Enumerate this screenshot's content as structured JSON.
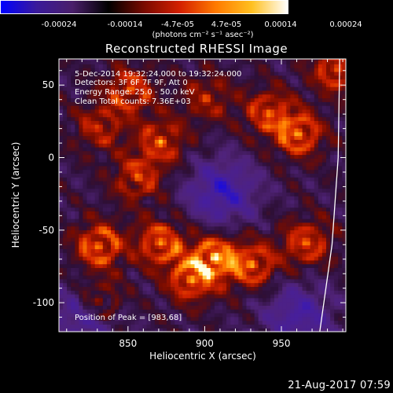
{
  "colorbar": {
    "ticks": [
      "-0.00024",
      "-0.00014",
      "-4.7e-05",
      "4.7e-05",
      "0.00014",
      "0.00024"
    ],
    "unit": "(photons cm⁻² s⁻¹ asec⁻²)",
    "colors": [
      "#0000ff",
      "#3a1a9a",
      "#4a1f6a",
      "#000000",
      "#7a0a00",
      "#d42000",
      "#ff7a00",
      "#ffc020",
      "#ffffff"
    ]
  },
  "chart_data": {
    "type": "heatmap",
    "title": "Reconstructed RHESSI Image",
    "xlabel": "Heliocentric X (arcsec)",
    "ylabel": "Heliocentric Y (arcsec)",
    "xlim": [
      805,
      992
    ],
    "ylim": [
      -120,
      68
    ],
    "xticks": [
      850,
      900,
      950
    ],
    "yticks": [
      -100,
      -50,
      0,
      50
    ],
    "annotations": {
      "time": "5-Dec-2014 19:32:24.000 to 19:32:24.000",
      "detectors": "Detectors: 3F 6F 7F 9F, Att 0",
      "energy": "Energy Range: 25.0 - 50.0 keV",
      "clean": "Clean     Total counts: 7.36E+03",
      "peak": "Position of Peak = [983,68]"
    },
    "limb_curve": [
      [
        975,
        -120
      ],
      [
        983,
        -60
      ],
      [
        987,
        0
      ],
      [
        988,
        68
      ]
    ],
    "bright_regions": [
      {
        "x": 830,
        "y": -62,
        "level": 0.95
      },
      {
        "x": 870,
        "y": -60,
        "level": 0.9
      },
      {
        "x": 905,
        "y": -70,
        "level": 1.0
      },
      {
        "x": 890,
        "y": -85,
        "level": 0.85
      },
      {
        "x": 960,
        "y": 15,
        "level": 0.9
      },
      {
        "x": 940,
        "y": 30,
        "level": 0.75
      },
      {
        "x": 850,
        "y": 45,
        "level": 0.8
      },
      {
        "x": 870,
        "y": 10,
        "level": 0.75
      },
      {
        "x": 855,
        "y": -15,
        "level": 0.7
      },
      {
        "x": 930,
        "y": -75,
        "level": 0.85
      },
      {
        "x": 965,
        "y": -60,
        "level": 0.8
      },
      {
        "x": 985,
        "y": 60,
        "level": 0.85
      },
      {
        "x": 830,
        "y": 20,
        "level": 0.6
      },
      {
        "x": 900,
        "y": 40,
        "level": 0.55
      },
      {
        "x": 830,
        "y": -100,
        "level": 0.7
      }
    ],
    "dim_regions": [
      {
        "x": 910,
        "y": -25,
        "level": 0.6
      },
      {
        "x": 820,
        "y": -110,
        "level": 0.5
      },
      {
        "x": 960,
        "y": -110,
        "level": 0.5
      }
    ]
  },
  "footer": {
    "timestamp": "21-Aug-2017 07:59"
  }
}
